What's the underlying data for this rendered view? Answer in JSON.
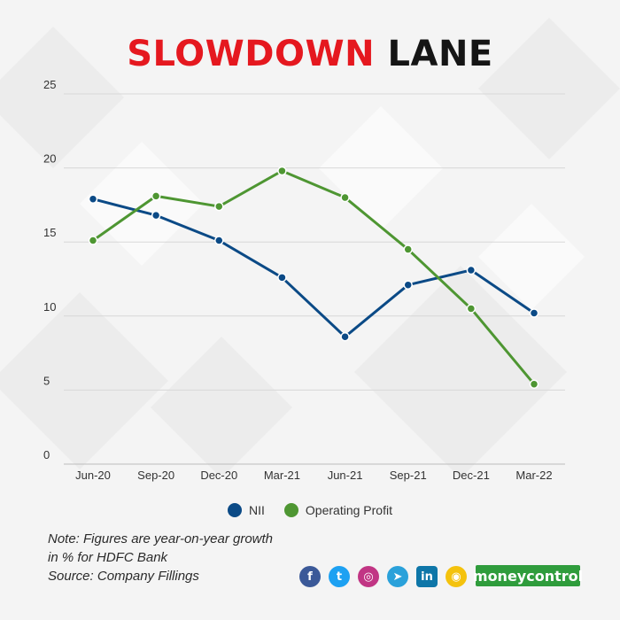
{
  "title": {
    "part1": "SLOWDOWN",
    "part2": "LANE"
  },
  "chart_data": {
    "type": "line",
    "categories": [
      "Jun-20",
      "Sep-20",
      "Dec-20",
      "Mar-21",
      "Jun-21",
      "Sep-21",
      "Dec-21",
      "Mar-22"
    ],
    "series": [
      {
        "name": "NII",
        "color": "#0b4a86",
        "values": [
          17.9,
          16.8,
          15.1,
          12.6,
          8.6,
          12.1,
          13.1,
          10.2
        ]
      },
      {
        "name": "Operating Profit",
        "color": "#4e9632",
        "values": [
          15.1,
          18.1,
          17.4,
          19.8,
          18.0,
          14.5,
          10.5,
          5.4
        ]
      }
    ],
    "yticks": [
      0,
      5,
      10,
      15,
      20,
      25
    ],
    "ylim": [
      0,
      25
    ],
    "grid": true,
    "legend": "bottom",
    "title": "SLOWDOWN LANE",
    "xlabel": "",
    "ylabel": ""
  },
  "note": {
    "line1": "Note: Figures are year-on-year growth",
    "line2": "in % for HDFC Bank",
    "source": "Source: Company Fillings"
  },
  "socials": [
    {
      "icon": "facebook-icon",
      "glyph": "f",
      "color": "#3b5998"
    },
    {
      "icon": "twitter-icon",
      "glyph": "t",
      "color": "#1da1f2"
    },
    {
      "icon": "instagram-icon",
      "glyph": "◎",
      "color": "#c13584"
    },
    {
      "icon": "telegram-icon",
      "glyph": "➤",
      "color": "#2aa1da"
    },
    {
      "icon": "linkedin-icon",
      "glyph": "in",
      "color": "#0e76a8"
    },
    {
      "icon": "koo-icon",
      "glyph": "◉",
      "color": "#f4c20d"
    }
  ],
  "brand": "moneycontrol"
}
